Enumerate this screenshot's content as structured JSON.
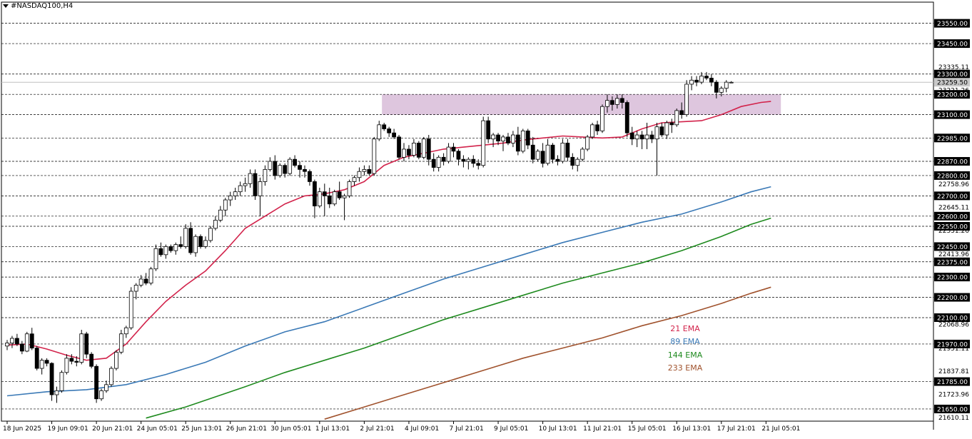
{
  "title": "#NASDAQ100,H4",
  "chart_data": {
    "type": "candlestick",
    "symbol": "#NASDAQ100",
    "timeframe": "H4",
    "y_range": [
      21590,
      23605
    ],
    "current_price": "23259.50",
    "price_level_labels": [
      "23550.00",
      "23450.00",
      "23300.00",
      "23200.00",
      "23100.00",
      "22985.00",
      "22870.00",
      "22800.00",
      "22700.00",
      "22600.00",
      "22550.00",
      "22450.00",
      "22375.00",
      "22300.00",
      "22200.00",
      "22100.00",
      "21970.00",
      "21785.00",
      "21650.00"
    ],
    "levels": [
      23550,
      23450,
      23300,
      23200,
      23100,
      22985,
      22870,
      22800,
      22700,
      22600,
      22550,
      22450,
      22375,
      22300,
      22200,
      22100,
      21970,
      21785,
      21650
    ],
    "axis_tick_labels": [
      "23335.11",
      "23221.26",
      "22758.96",
      "22645.11",
      "22531.26",
      "22413.96",
      "22068.96",
      "21951.11",
      "21837.81",
      "21723.96",
      "21610.11"
    ],
    "axis_tick_values": [
      23335.11,
      23221.26,
      22758.96,
      22645.11,
      22531.26,
      22413.96,
      22068.96,
      21951.11,
      21837.81,
      21723.96,
      21610.11
    ],
    "x_labels": [
      "18 Jun 2025",
      "19 Jun 09:01",
      "20 Jun 21:01",
      "24 Jun 05:01",
      "25 Jun 13:01",
      "26 Jun 21:01",
      "30 Jun 05:01",
      "1 Jul 13:01",
      "2 Jul 21:01",
      "4 Jul 09:01",
      "7 Jul 21:01",
      "9 Jul 05:01",
      "10 Jul 13:01",
      "11 Jul 21:01",
      "15 Jul 05:01",
      "16 Jul 13:01",
      "17 Jul 21:01",
      "21 Jul 05:01"
    ],
    "x_label_bar_index": [
      0,
      9,
      18,
      27,
      36,
      45,
      54,
      63,
      72,
      81,
      90,
      99,
      108,
      117,
      126,
      135,
      144,
      153
    ],
    "resistance_zone": {
      "low": 23100,
      "high": 23200,
      "from_bar": 76,
      "to_bar": 156
    },
    "series": [
      {
        "name": "21 EMA",
        "color": "#d2234b",
        "points": [
          [
            0,
            21965
          ],
          [
            4,
            21970
          ],
          [
            8,
            21945
          ],
          [
            12,
            21915
          ],
          [
            16,
            21890
          ],
          [
            20,
            21900
          ],
          [
            24,
            21970
          ],
          [
            28,
            22080
          ],
          [
            32,
            22180
          ],
          [
            36,
            22260
          ],
          [
            40,
            22330
          ],
          [
            44,
            22430
          ],
          [
            48,
            22540
          ],
          [
            52,
            22600
          ],
          [
            56,
            22660
          ],
          [
            60,
            22700
          ],
          [
            64,
            22710
          ],
          [
            68,
            22730
          ],
          [
            72,
            22770
          ],
          [
            76,
            22850
          ],
          [
            80,
            22890
          ],
          [
            84,
            22910
          ],
          [
            88,
            22930
          ],
          [
            92,
            22940
          ],
          [
            96,
            22950
          ],
          [
            100,
            22960
          ],
          [
            104,
            22975
          ],
          [
            108,
            22985
          ],
          [
            112,
            22995
          ],
          [
            116,
            22990
          ],
          [
            120,
            22985
          ],
          [
            124,
            22990
          ],
          [
            128,
            23030
          ],
          [
            132,
            23060
          ],
          [
            136,
            23065
          ],
          [
            140,
            23070
          ],
          [
            144,
            23100
          ],
          [
            148,
            23140
          ],
          [
            152,
            23160
          ],
          [
            154,
            23165
          ]
        ]
      },
      {
        "name": "89 EMA",
        "color": "#3a79b6",
        "points": [
          [
            0,
            21715
          ],
          [
            8,
            21735
          ],
          [
            16,
            21745
          ],
          [
            24,
            21770
          ],
          [
            32,
            21820
          ],
          [
            40,
            21880
          ],
          [
            48,
            21960
          ],
          [
            56,
            22030
          ],
          [
            64,
            22080
          ],
          [
            72,
            22150
          ],
          [
            80,
            22220
          ],
          [
            88,
            22290
          ],
          [
            96,
            22350
          ],
          [
            104,
            22410
          ],
          [
            112,
            22470
          ],
          [
            120,
            22520
          ],
          [
            128,
            22570
          ],
          [
            136,
            22610
          ],
          [
            144,
            22670
          ],
          [
            150,
            22720
          ],
          [
            154,
            22745
          ]
        ]
      },
      {
        "name": "144 EMA",
        "color": "#1e8a1e",
        "points": [
          [
            28,
            21605
          ],
          [
            36,
            21660
          ],
          [
            48,
            21760
          ],
          [
            56,
            21830
          ],
          [
            64,
            21890
          ],
          [
            72,
            21950
          ],
          [
            80,
            22020
          ],
          [
            88,
            22090
          ],
          [
            96,
            22150
          ],
          [
            104,
            22210
          ],
          [
            112,
            22270
          ],
          [
            120,
            22320
          ],
          [
            128,
            22370
          ],
          [
            136,
            22430
          ],
          [
            144,
            22500
          ],
          [
            150,
            22560
          ],
          [
            154,
            22590
          ]
        ]
      },
      {
        "name": "233 EMA",
        "color": "#a0522d",
        "points": [
          [
            64,
            21600
          ],
          [
            72,
            21660
          ],
          [
            80,
            21720
          ],
          [
            88,
            21780
          ],
          [
            96,
            21840
          ],
          [
            104,
            21900
          ],
          [
            112,
            21950
          ],
          [
            120,
            22000
          ],
          [
            128,
            22060
          ],
          [
            136,
            22110
          ],
          [
            144,
            22170
          ],
          [
            150,
            22220
          ],
          [
            154,
            22250
          ]
        ]
      }
    ],
    "ema_labels": [
      {
        "text": "21 EMA",
        "color": "#d2234b"
      },
      {
        "text": "89 EMA",
        "color": "#3a79b6"
      },
      {
        "text": "144 EMA",
        "color": "#1e8a1e"
      },
      {
        "text": "233 EMA",
        "color": "#a0522d"
      }
    ],
    "candles": [
      [
        21960,
        21990,
        21940,
        21975
      ],
      [
        21975,
        22010,
        21950,
        21998
      ],
      [
        21998,
        22020,
        21960,
        21970
      ],
      [
        21970,
        21985,
        21920,
        21935
      ],
      [
        21935,
        22030,
        21930,
        22020
      ],
      [
        22020,
        22050,
        21940,
        21950
      ],
      [
        21950,
        21960,
        21840,
        21850
      ],
      [
        21850,
        21900,
        21820,
        21890
      ],
      [
        21890,
        21900,
        21860,
        21875
      ],
      [
        21875,
        21880,
        21690,
        21720
      ],
      [
        21720,
        21760,
        21680,
        21740
      ],
      [
        21740,
        21840,
        21730,
        21830
      ],
      [
        21830,
        21920,
        21820,
        21900
      ],
      [
        21900,
        21920,
        21870,
        21885
      ],
      [
        21885,
        21910,
        21860,
        21880
      ],
      [
        21880,
        22040,
        21870,
        22020
      ],
      [
        22020,
        22030,
        21900,
        21920
      ],
      [
        21920,
        21930,
        21850,
        21860
      ],
      [
        21860,
        21870,
        21680,
        21700
      ],
      [
        21700,
        21750,
        21690,
        21740
      ],
      [
        21740,
        21790,
        21730,
        21770
      ],
      [
        21770,
        21860,
        21760,
        21850
      ],
      [
        21850,
        21940,
        21840,
        21930
      ],
      [
        21930,
        22040,
        21920,
        22020
      ],
      [
        22020,
        22060,
        22000,
        22050
      ],
      [
        22050,
        22250,
        22040,
        22230
      ],
      [
        22230,
        22270,
        22190,
        22260
      ],
      [
        22260,
        22310,
        22250,
        22290
      ],
      [
        22290,
        22320,
        22260,
        22270
      ],
      [
        22270,
        22350,
        22260,
        22340
      ],
      [
        22340,
        22460,
        22330,
        22440
      ],
      [
        22440,
        22470,
        22400,
        22410
      ],
      [
        22410,
        22460,
        22390,
        22450
      ],
      [
        22450,
        22460,
        22420,
        22430
      ],
      [
        22430,
        22470,
        22410,
        22460
      ],
      [
        22460,
        22500,
        22440,
        22450
      ],
      [
        22450,
        22560,
        22440,
        22540
      ],
      [
        22540,
        22570,
        22410,
        22420
      ],
      [
        22420,
        22510,
        22400,
        22500
      ],
      [
        22500,
        22510,
        22440,
        22450
      ],
      [
        22450,
        22500,
        22440,
        22480
      ],
      [
        22480,
        22550,
        22470,
        22540
      ],
      [
        22540,
        22600,
        22530,
        22580
      ],
      [
        22580,
        22650,
        22570,
        22630
      ],
      [
        22630,
        22690,
        22600,
        22680
      ],
      [
        22680,
        22720,
        22650,
        22700
      ],
      [
        22700,
        22740,
        22680,
        22720
      ],
      [
        22720,
        22770,
        22700,
        22750
      ],
      [
        22750,
        22790,
        22720,
        22760
      ],
      [
        22760,
        22830,
        22740,
        22810
      ],
      [
        22810,
        22830,
        22680,
        22700
      ],
      [
        22700,
        22790,
        22600,
        22770
      ],
      [
        22770,
        22850,
        22750,
        22830
      ],
      [
        22830,
        22890,
        22820,
        22870
      ],
      [
        22870,
        22900,
        22780,
        22800
      ],
      [
        22800,
        22860,
        22790,
        22850
      ],
      [
        22850,
        22860,
        22790,
        22810
      ],
      [
        22810,
        22890,
        22800,
        22880
      ],
      [
        22880,
        22900,
        22840,
        22850
      ],
      [
        22850,
        22870,
        22790,
        22830
      ],
      [
        22830,
        22850,
        22790,
        22820
      ],
      [
        22820,
        22830,
        22750,
        22770
      ],
      [
        22770,
        22780,
        22590,
        22650
      ],
      [
        22650,
        22740,
        22640,
        22720
      ],
      [
        22720,
        22760,
        22600,
        22700
      ],
      [
        22700,
        22740,
        22640,
        22660
      ],
      [
        22660,
        22730,
        22650,
        22720
      ],
      [
        22720,
        22770,
        22680,
        22690
      ],
      [
        22690,
        22710,
        22580,
        22700
      ],
      [
        22700,
        22780,
        22690,
        22770
      ],
      [
        22770,
        22800,
        22750,
        22790
      ],
      [
        22790,
        22840,
        22770,
        22820
      ],
      [
        22820,
        22850,
        22800,
        22830
      ],
      [
        22830,
        22850,
        22800,
        22810
      ],
      [
        22810,
        22990,
        22800,
        22980
      ],
      [
        22980,
        23070,
        22970,
        23050
      ],
      [
        23050,
        23060,
        23020,
        23030
      ],
      [
        23030,
        23040,
        22990,
        23010
      ],
      [
        23010,
        23030,
        22980,
        22990
      ],
      [
        22990,
        23000,
        22880,
        22890
      ],
      [
        22890,
        22960,
        22870,
        22930
      ],
      [
        22930,
        22950,
        22880,
        22900
      ],
      [
        22900,
        22980,
        22890,
        22960
      ],
      [
        22960,
        22970,
        22880,
        22890
      ],
      [
        22890,
        22990,
        22880,
        22980
      ],
      [
        22980,
        23000,
        22850,
        22880
      ],
      [
        22880,
        22910,
        22820,
        22840
      ],
      [
        22840,
        22900,
        22820,
        22890
      ],
      [
        22890,
        22910,
        22850,
        22870
      ],
      [
        22870,
        22960,
        22860,
        22940
      ],
      [
        22940,
        22960,
        22890,
        22920
      ],
      [
        22920,
        22930,
        22850,
        22880
      ],
      [
        22880,
        22900,
        22840,
        22870
      ],
      [
        22870,
        22890,
        22830,
        22880
      ],
      [
        22880,
        22900,
        22840,
        22860
      ],
      [
        22860,
        22880,
        22830,
        22850
      ],
      [
        22850,
        23090,
        22840,
        23070
      ],
      [
        23070,
        23090,
        22960,
        22980
      ],
      [
        22980,
        23010,
        22940,
        23000
      ],
      [
        23000,
        23010,
        22950,
        22970
      ],
      [
        22970,
        23000,
        22920,
        22990
      ],
      [
        22990,
        23010,
        22950,
        22960
      ],
      [
        22960,
        23020,
        22940,
        23000
      ],
      [
        23000,
        23040,
        22900,
        22920
      ],
      [
        22920,
        23030,
        22910,
        23020
      ],
      [
        23020,
        23030,
        22930,
        22950
      ],
      [
        22950,
        22990,
        22860,
        22880
      ],
      [
        22880,
        22930,
        22870,
        22920
      ],
      [
        22920,
        22960,
        22840,
        22860
      ],
      [
        22860,
        22980,
        22850,
        22950
      ],
      [
        22950,
        22960,
        22860,
        22880
      ],
      [
        22880,
        22900,
        22850,
        22870
      ],
      [
        22870,
        22980,
        22860,
        22960
      ],
      [
        22960,
        22980,
        22870,
        22890
      ],
      [
        22890,
        22910,
        22830,
        22850
      ],
      [
        22850,
        22890,
        22820,
        22880
      ],
      [
        22880,
        22940,
        22870,
        22930
      ],
      [
        22930,
        23000,
        22920,
        22990
      ],
      [
        22990,
        23060,
        22980,
        23050
      ],
      [
        23050,
        23070,
        23000,
        23020
      ],
      [
        23020,
        23150,
        23010,
        23140
      ],
      [
        23140,
        23200,
        23110,
        23170
      ],
      [
        23170,
        23190,
        23120,
        23150
      ],
      [
        23150,
        23200,
        23130,
        23180
      ],
      [
        23180,
        23200,
        23130,
        23160
      ],
      [
        23160,
        23170,
        22990,
        23010
      ],
      [
        23010,
        23040,
        22950,
        22980
      ],
      [
        22980,
        23020,
        22940,
        23000
      ],
      [
        23000,
        23020,
        22930,
        22980
      ],
      [
        22980,
        23060,
        22930,
        23000
      ],
      [
        23000,
        23020,
        22960,
        22980
      ],
      [
        22980,
        23060,
        22800,
        23040
      ],
      [
        23040,
        23060,
        22990,
        23000
      ],
      [
        23000,
        23070,
        22980,
        23060
      ],
      [
        23060,
        23080,
        23010,
        23050
      ],
      [
        23050,
        23130,
        23040,
        23120
      ],
      [
        23120,
        23160,
        23080,
        23100
      ],
      [
        23100,
        23270,
        23090,
        23250
      ],
      [
        23250,
        23290,
        23220,
        23270
      ],
      [
        23270,
        23290,
        23240,
        23260
      ],
      [
        23260,
        23310,
        23250,
        23290
      ],
      [
        23290,
        23310,
        23270,
        23280
      ],
      [
        23280,
        23300,
        23240,
        23260
      ],
      [
        23260,
        23270,
        23180,
        23210
      ],
      [
        23210,
        23240,
        23190,
        23230
      ],
      [
        23230,
        23270,
        23210,
        23260
      ],
      [
        23259.5,
        23265,
        23255,
        23259.5
      ]
    ]
  }
}
